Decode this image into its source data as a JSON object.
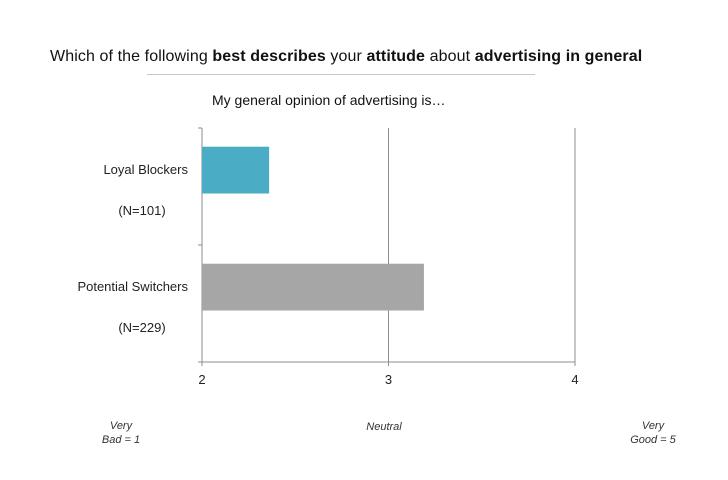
{
  "title": {
    "segments": [
      {
        "text": "Which of the following ",
        "bold": false
      },
      {
        "text": "best describes",
        "bold": true
      },
      {
        "text": " your ",
        "bold": false
      },
      {
        "text": "attitude",
        "bold": true
      },
      {
        "text": " about ",
        "bold": false
      },
      {
        "text": "advertising in general",
        "bold": true
      }
    ]
  },
  "subtitle": "My general opinion of advertising is…",
  "chart_data": {
    "type": "bar",
    "orientation": "horizontal",
    "categories": [
      "Loyal Blockers",
      "Potential Switchers"
    ],
    "category_notes": [
      "(N=101)",
      "(N=229)"
    ],
    "values": [
      2.36,
      3.19
    ],
    "colors": [
      "#4bacc6",
      "#a6a6a6"
    ],
    "xlim": [
      2,
      4
    ],
    "xticks": [
      "2",
      "3",
      "4"
    ],
    "grid": true
  },
  "scale_anchors": [
    {
      "line1": "Very",
      "line2": "Bad = 1"
    },
    {
      "line1": "Neutral",
      "line2": ""
    },
    {
      "line1": "Very",
      "line2": "Good =  5"
    }
  ]
}
